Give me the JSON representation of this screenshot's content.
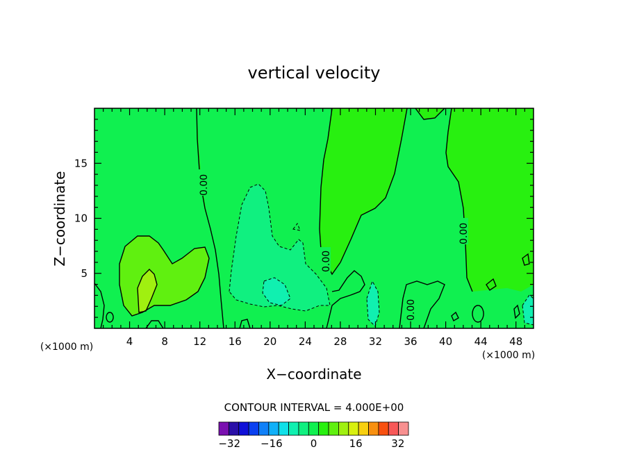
{
  "chart_data": {
    "type": "heatmap",
    "title": "vertical velocity",
    "xlabel": "X−coordinate",
    "ylabel": "Z−coordinate",
    "x_unit": "(×1000 m)",
    "z_unit": "(×1000 m)",
    "xlim": [
      0,
      50
    ],
    "ylim": [
      0,
      20
    ],
    "x_ticks": [
      4,
      8,
      12,
      16,
      20,
      24,
      28,
      32,
      36,
      40,
      44,
      48
    ],
    "y_ticks": [
      5,
      10,
      15
    ],
    "contour_interval_text": "CONTOUR INTERVAL = 4.000E+00",
    "contour_interval": 4,
    "zero_contour_labels": [
      "0.00",
      "0.00",
      "0.00",
      "0.00"
    ],
    "colorbar": {
      "levels": [
        -36,
        -32,
        -28,
        -24,
        -20,
        -16,
        -12,
        -8,
        -4,
        0,
        4,
        8,
        12,
        16,
        20,
        24,
        28,
        32,
        36
      ],
      "colors": [
        "#7a10b0",
        "#2a10a8",
        "#1010d8",
        "#0a40f0",
        "#1080f8",
        "#10b0f8",
        "#10e0e8",
        "#10f0b0",
        "#10f080",
        "#10f050",
        "#28f010",
        "#60f010",
        "#a0f010",
        "#d8f010",
        "#f8d010",
        "#f89010",
        "#f85010",
        "#f85858",
        "#f89090"
      ],
      "tick_labels": [
        "−32",
        "−16",
        "0",
        "16",
        "32"
      ],
      "tick_values": [
        -32,
        -16,
        0,
        16,
        32
      ]
    },
    "regions": {
      "positive_color": "#28f010",
      "zero_color": "#10f050",
      "weak_negative_color": "#10f080",
      "negative_color": "#10f0b0",
      "positive_4_color": "#60f010",
      "positive_8_color": "#a0f010"
    }
  }
}
